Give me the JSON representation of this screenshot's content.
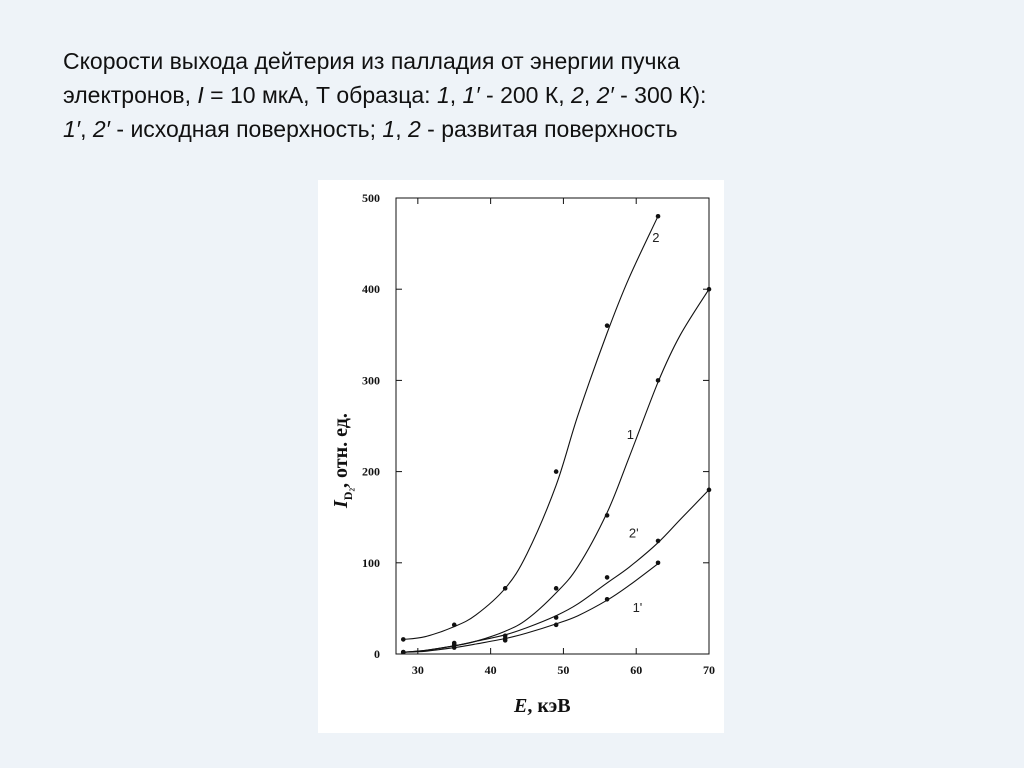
{
  "caption": {
    "line1": "Скорости выхода  дейтерия из палладия от энергии пучка",
    "line2_a": "электронов, ",
    "line2_I": "I",
    "line2_b": " = 10 мкА, Т образца: ",
    "line2_c1": "1",
    "line2_sep1": ", ",
    "line2_c1p": "1′",
    "line2_d": " - 200 К, ",
    "line2_c2": "2",
    "line2_sep2": ", ",
    "line2_c2p": "2′",
    "line2_e": " - 300 К):",
    "line3_c1p": "1′",
    "line3_sep": ", ",
    "line3_c2p": "2′",
    "line3_a": " - исходная поверхность; ",
    "line3_c1": "1",
    "line3_sep2": ", ",
    "line3_c2": "2",
    "line3_b": " - развитая поверхность"
  },
  "chart_data": {
    "type": "scatter",
    "xlabel_italic": "E",
    "xlabel_rest": ", кэВ",
    "ylabel_italic": "I",
    "ylabel_sub": "D₂",
    "ylabel_rest": ", отн. ед.",
    "xlim": [
      27,
      70
    ],
    "ylim": [
      0,
      500
    ],
    "xticks": [
      30,
      40,
      50,
      60,
      70
    ],
    "yticks": [
      0,
      100,
      200,
      300,
      400,
      500
    ],
    "grid": false,
    "series": [
      {
        "name": "2",
        "points": [
          [
            28,
            16
          ],
          [
            35,
            32
          ],
          [
            42,
            72
          ],
          [
            49,
            200
          ],
          [
            56,
            360
          ],
          [
            63,
            480
          ]
        ],
        "curve": [
          [
            28,
            16
          ],
          [
            31,
            19
          ],
          [
            35,
            30
          ],
          [
            38,
            43
          ],
          [
            42,
            72
          ],
          [
            45,
            110
          ],
          [
            49,
            185
          ],
          [
            52,
            262
          ],
          [
            56,
            352
          ],
          [
            59,
            412
          ],
          [
            63,
            480
          ]
        ],
        "label_at": [
          62.2,
          452
        ]
      },
      {
        "name": "1",
        "points": [
          [
            28,
            2
          ],
          [
            35,
            12
          ],
          [
            42,
            20
          ],
          [
            49,
            72
          ],
          [
            56,
            152
          ],
          [
            63,
            300
          ],
          [
            70,
            400
          ]
        ],
        "curve": [
          [
            28,
            2
          ],
          [
            31,
            4
          ],
          [
            35,
            9
          ],
          [
            38,
            14
          ],
          [
            42,
            25
          ],
          [
            45,
            38
          ],
          [
            49,
            67
          ],
          [
            52,
            96
          ],
          [
            56,
            155
          ],
          [
            59,
            215
          ],
          [
            63,
            298
          ],
          [
            66,
            349
          ],
          [
            70,
            400
          ]
        ],
        "label_at": [
          58.7,
          236
        ]
      },
      {
        "name": "2'",
        "points": [
          [
            28,
            2
          ],
          [
            35,
            10
          ],
          [
            42,
            17
          ],
          [
            49,
            40
          ],
          [
            56,
            84
          ],
          [
            63,
            124
          ],
          [
            70,
            180
          ]
        ],
        "curve": [
          [
            28,
            2
          ],
          [
            31,
            4
          ],
          [
            35,
            9
          ],
          [
            38,
            14
          ],
          [
            42,
            21
          ],
          [
            45,
            29
          ],
          [
            49,
            42
          ],
          [
            52,
            55
          ],
          [
            56,
            78
          ],
          [
            59,
            95
          ],
          [
            63,
            122
          ],
          [
            66,
            147
          ],
          [
            70,
            180
          ]
        ],
        "label_at": [
          59,
          128
        ]
      },
      {
        "name": "1'",
        "points": [
          [
            28,
            2
          ],
          [
            35,
            7
          ],
          [
            42,
            15
          ],
          [
            49,
            32
          ],
          [
            56,
            60
          ],
          [
            63,
            100
          ]
        ],
        "curve": [
          [
            28,
            2
          ],
          [
            31,
            3
          ],
          [
            35,
            7
          ],
          [
            38,
            11
          ],
          [
            42,
            17
          ],
          [
            45,
            23
          ],
          [
            49,
            33
          ],
          [
            52,
            42
          ],
          [
            56,
            59
          ],
          [
            59,
            75
          ],
          [
            63,
            99
          ]
        ],
        "label_at": [
          59.5,
          46
        ]
      }
    ]
  }
}
